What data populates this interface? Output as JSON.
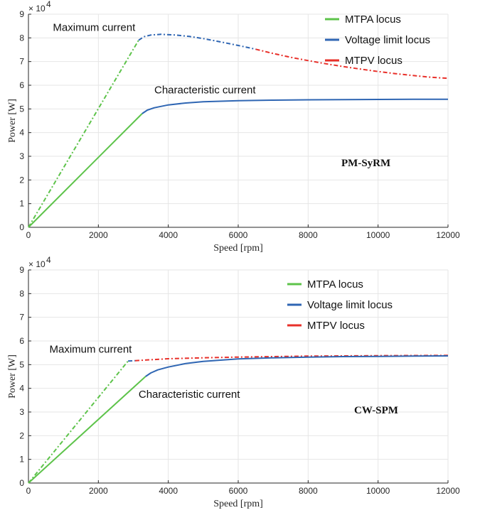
{
  "chart_data": [
    {
      "type": "line",
      "machine_label": "PM-SyRM",
      "xlabel": "Speed [rpm]",
      "ylabel": "Power [W]",
      "xlim": [
        0,
        12000
      ],
      "ylim": [
        0,
        90000
      ],
      "y_multiplier": "× 10",
      "y_multiplier_exp": "4",
      "x_ticks": [
        0,
        2000,
        4000,
        6000,
        8000,
        10000,
        12000
      ],
      "y_ticks": [
        0,
        1,
        2,
        3,
        4,
        5,
        6,
        7,
        8,
        9
      ],
      "legend": [
        {
          "label": "MTPA locus",
          "color": "#5dc34a"
        },
        {
          "label": "Voltage limit locus",
          "color": "#2f66b3"
        },
        {
          "label": "MTPV locus",
          "color": "#e8302a"
        }
      ],
      "annotations": [
        {
          "text": "Maximum current",
          "x": 700,
          "y": 83000
        },
        {
          "text": "Characteristic current",
          "x": 3600,
          "y": 56500
        }
      ],
      "series": [
        {
          "group": "max",
          "locus": "MTPA",
          "dashed": true,
          "x": [
            0,
            3150
          ],
          "y": [
            0,
            79000
          ]
        },
        {
          "group": "max",
          "locus": "Voltage limit",
          "dashed": true,
          "x": [
            3150,
            3300,
            3500,
            3800,
            4200,
            4600,
            5000,
            5500,
            6000,
            6500
          ],
          "y": [
            79000,
            80500,
            81200,
            81500,
            81200,
            80600,
            79700,
            78300,
            76800,
            75200
          ]
        },
        {
          "group": "max",
          "locus": "MTPV",
          "dashed": true,
          "x": [
            6500,
            7000,
            7500,
            8000,
            8500,
            9000,
            9500,
            10000,
            10500,
            11000,
            11500,
            12000
          ],
          "y": [
            75200,
            73400,
            71800,
            70400,
            69100,
            67900,
            66800,
            65800,
            64900,
            64100,
            63400,
            62900
          ]
        },
        {
          "group": "char",
          "locus": "MTPA",
          "dashed": false,
          "x": [
            0,
            3250
          ],
          "y": [
            0,
            48000
          ]
        },
        {
          "group": "char",
          "locus": "Voltage limit",
          "dashed": false,
          "x": [
            3250,
            3400,
            3600,
            4000,
            4500,
            5000,
            6000,
            7000,
            8000,
            9000,
            10000,
            11000,
            12000
          ],
          "y": [
            48000,
            49500,
            50500,
            51700,
            52500,
            53000,
            53500,
            53700,
            53850,
            53950,
            54000,
            54050,
            54100
          ]
        }
      ]
    },
    {
      "type": "line",
      "machine_label": "CW-SPM",
      "xlabel": "Speed [rpm]",
      "ylabel": "Power [W]",
      "xlim": [
        0,
        12000
      ],
      "ylim": [
        0,
        90000
      ],
      "y_multiplier": "× 10",
      "y_multiplier_exp": "4",
      "x_ticks": [
        0,
        2000,
        4000,
        6000,
        8000,
        10000,
        12000
      ],
      "y_ticks": [
        0,
        1,
        2,
        3,
        4,
        5,
        6,
        7,
        8,
        9
      ],
      "legend": [
        {
          "label": "MTPA locus",
          "color": "#5dc34a"
        },
        {
          "label": "Voltage limit locus",
          "color": "#2f66b3"
        },
        {
          "label": "MTPV locus",
          "color": "#e8302a"
        }
      ],
      "annotations": [
        {
          "text": "Maximum current",
          "x": 600,
          "y": 55000
        },
        {
          "text": "Characteristic current",
          "x": 3150,
          "y": 36000
        }
      ],
      "series": [
        {
          "group": "max",
          "locus": "MTPA",
          "dashed": true,
          "x": [
            0,
            2850
          ],
          "y": [
            0,
            51500
          ]
        },
        {
          "group": "max",
          "locus": "Voltage limit",
          "dashed": true,
          "x": [
            2850,
            3050
          ],
          "y": [
            51500,
            51700
          ]
        },
        {
          "group": "max",
          "locus": "MTPV",
          "dashed": true,
          "x": [
            3050,
            4000,
            5000,
            6000,
            7000,
            8000,
            9000,
            10000,
            11000,
            12000
          ],
          "y": [
            51700,
            52500,
            52900,
            53200,
            53400,
            53600,
            53700,
            53800,
            53850,
            53900
          ]
        },
        {
          "group": "char",
          "locus": "MTPA",
          "dashed": false,
          "x": [
            0,
            3350
          ],
          "y": [
            0,
            45000
          ]
        },
        {
          "group": "char",
          "locus": "Voltage limit",
          "dashed": false,
          "x": [
            3350,
            3500,
            3700,
            4000,
            4500,
            5000,
            6000,
            7000,
            8000,
            9000,
            10000,
            11000,
            12000
          ],
          "y": [
            45000,
            46500,
            47800,
            49000,
            50500,
            51400,
            52400,
            52900,
            53200,
            53400,
            53500,
            53600,
            53700
          ]
        }
      ]
    }
  ]
}
